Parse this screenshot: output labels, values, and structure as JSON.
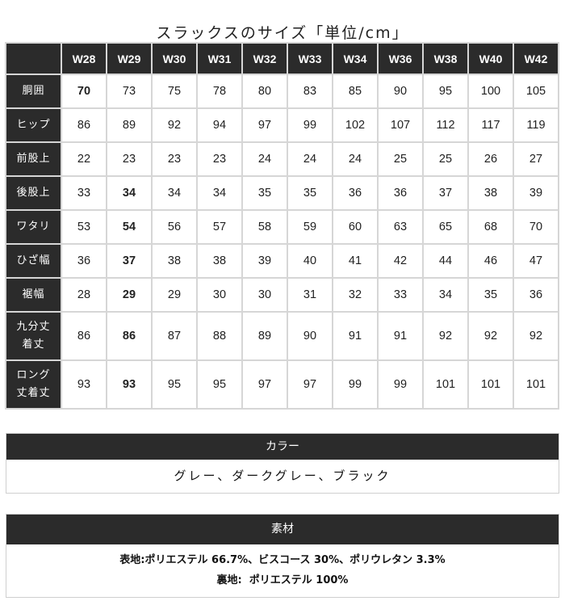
{
  "title": "スラックスのサイズ「単位/cm」",
  "size_table": {
    "columns": [
      "W28",
      "W29",
      "W30",
      "W31",
      "W32",
      "W33",
      "W34",
      "W36",
      "W38",
      "W40",
      "W42"
    ],
    "rows": [
      {
        "label": "胴囲",
        "values": [
          "70",
          "73",
          "75",
          "78",
          "80",
          "83",
          "85",
          "90",
          "95",
          "100",
          "105"
        ]
      },
      {
        "label": "ヒップ",
        "values": [
          "86",
          "89",
          "92",
          "94",
          "97",
          "99",
          "102",
          "107",
          "112",
          "117",
          "119"
        ]
      },
      {
        "label": "前股上",
        "values": [
          "22",
          "23",
          "23",
          "23",
          "24",
          "24",
          "24",
          "25",
          "25",
          "26",
          "27"
        ]
      },
      {
        "label": "後股上",
        "values": [
          "33",
          "34",
          "34",
          "34",
          "35",
          "35",
          "36",
          "36",
          "37",
          "38",
          "39"
        ]
      },
      {
        "label": "ワタリ",
        "values": [
          "53",
          "54",
          "56",
          "57",
          "58",
          "59",
          "60",
          "63",
          "65",
          "68",
          "70"
        ]
      },
      {
        "label": "ひざ幅",
        "values": [
          "36",
          "37",
          "38",
          "38",
          "39",
          "40",
          "41",
          "42",
          "44",
          "46",
          "47"
        ]
      },
      {
        "label": "裾幅",
        "values": [
          "28",
          "29",
          "29",
          "30",
          "30",
          "31",
          "32",
          "33",
          "34",
          "35",
          "36"
        ]
      },
      {
        "label": "九分丈\n着丈",
        "values": [
          "86",
          "86",
          "87",
          "88",
          "89",
          "90",
          "91",
          "91",
          "92",
          "92",
          "92"
        ]
      },
      {
        "label": "ロング\n丈着丈",
        "values": [
          "93",
          "93",
          "95",
          "95",
          "97",
          "97",
          "99",
          "99",
          "101",
          "101",
          "101"
        ]
      }
    ]
  },
  "color": {
    "heading": "カラー",
    "value": "グレー、ダークグレー、ブラック"
  },
  "material": {
    "heading": "素材",
    "line1": "表地:ポリエステル 66.7%、ビスコース 30%、ポリウレタン 3.3%",
    "line2": "裏地:  ポリエステル 100%"
  },
  "colors": {
    "header_bg": "#2b2b2b",
    "grid": "#d6d6d6"
  }
}
